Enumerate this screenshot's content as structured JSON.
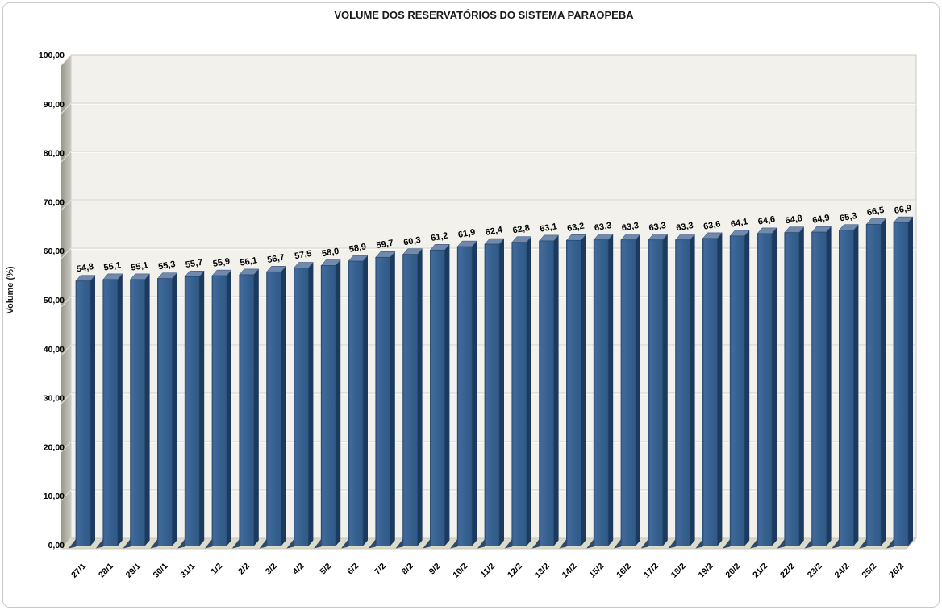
{
  "chart_data": {
    "type": "bar",
    "title": "VOLUME DOS RESERVATÓRIOS DO SISTEMA PARAOPEBA",
    "xlabel": "",
    "ylabel": "Volume (%)",
    "ylim": [
      0,
      100
    ],
    "ytick_step": 10,
    "ytick_labels": [
      "0,00",
      "10,00",
      "20,00",
      "30,00",
      "40,00",
      "50,00",
      "60,00",
      "70,00",
      "80,00",
      "90,00",
      "100,00"
    ],
    "grid": true,
    "legend": "none",
    "style": "excel-3d-column",
    "categories": [
      "27/1",
      "28/1",
      "29/1",
      "30/1",
      "31/1",
      "1/2",
      "2/2",
      "3/2",
      "4/2",
      "5/2",
      "6/2",
      "7/2",
      "8/2",
      "9/2",
      "10/2",
      "11/2",
      "12/2",
      "13/2",
      "14/2",
      "15/2",
      "16/2",
      "17/2",
      "18/2",
      "19/2",
      "20/2",
      "21/2",
      "22/2",
      "23/2",
      "24/2",
      "25/2",
      "26/2"
    ],
    "values": [
      54.8,
      55.1,
      55.1,
      55.3,
      55.7,
      55.9,
      56.1,
      56.7,
      57.5,
      58.0,
      58.9,
      59.7,
      60.3,
      61.2,
      61.9,
      62.4,
      62.8,
      63.1,
      63.2,
      63.3,
      63.3,
      63.3,
      63.3,
      63.6,
      64.1,
      64.6,
      64.8,
      64.9,
      65.3,
      66.5,
      66.9
    ],
    "value_labels": [
      "54,8",
      "55,1",
      "55,1",
      "55,3",
      "55,7",
      "55,9",
      "56,1",
      "56,7",
      "57,5",
      "58,0",
      "58,9",
      "59,7",
      "60,3",
      "61,2",
      "61,9",
      "62,4",
      "62,8",
      "63,1",
      "63,2",
      "63,3",
      "63,3",
      "63,3",
      "63,3",
      "63,6",
      "64,1",
      "64,6",
      "64,8",
      "64,9",
      "65,3",
      "66,5",
      "66,9"
    ],
    "colors": {
      "bar_front": "#35618F",
      "bar_side": "#1C3A5E",
      "bar_top": "#7089AC",
      "bar_outline": "#27496F",
      "back_wall": "#F2F1EB",
      "wall_border": "#C9C7C0",
      "floor": "#DCDAC9",
      "floor_border": "#BFBDB1",
      "side_wall_dark": "#99988F",
      "side_wall_light": "#C9C7BF",
      "gridline": "#D6D4CD",
      "tick_mark": "#E3E2DB",
      "title": "#1A1A1A",
      "label": "#000000"
    }
  }
}
